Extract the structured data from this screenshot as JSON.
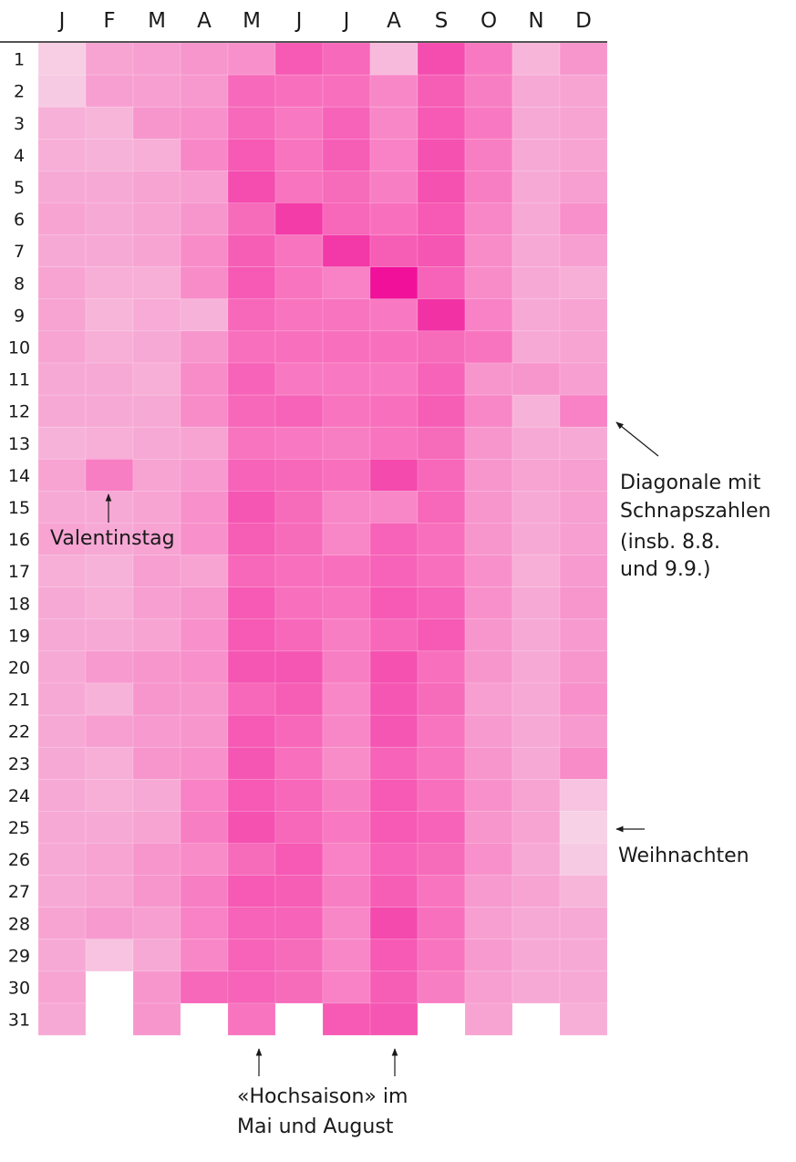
{
  "chart_data": {
    "type": "heatmap",
    "title": "",
    "xlabel": "",
    "ylabel": "",
    "x_categories": [
      "J",
      "F",
      "M",
      "A",
      "M",
      "J",
      "J",
      "A",
      "S",
      "O",
      "N",
      "D"
    ],
    "y_categories": [
      "1",
      "2",
      "3",
      "4",
      "5",
      "6",
      "7",
      "8",
      "9",
      "10",
      "11",
      "12",
      "13",
      "14",
      "15",
      "16",
      "17",
      "18",
      "19",
      "20",
      "21",
      "22",
      "23",
      "24",
      "25",
      "26",
      "27",
      "28",
      "29",
      "30",
      "31"
    ],
    "value_scale": "relative intensity 0-100 (estimated, no legend shown)",
    "colorscale": [
      "#f7dcea",
      "#f7b0d8",
      "#f874bf",
      "#f33ea9",
      "#f0109a"
    ],
    "values": [
      [
        8,
        30,
        32,
        36,
        38,
        62,
        55,
        20,
        68,
        48,
        22,
        36
      ],
      [
        10,
        32,
        32,
        35,
        55,
        52,
        52,
        42,
        60,
        46,
        28,
        30
      ],
      [
        25,
        22,
        36,
        38,
        55,
        48,
        58,
        42,
        62,
        48,
        28,
        30
      ],
      [
        26,
        24,
        26,
        42,
        62,
        50,
        60,
        44,
        66,
        46,
        28,
        30
      ],
      [
        28,
        28,
        30,
        32,
        68,
        50,
        54,
        46,
        66,
        46,
        28,
        32
      ],
      [
        30,
        28,
        30,
        36,
        54,
        76,
        56,
        52,
        62,
        42,
        28,
        38
      ],
      [
        28,
        28,
        30,
        40,
        60,
        50,
        78,
        60,
        64,
        40,
        28,
        32
      ],
      [
        30,
        26,
        26,
        40,
        62,
        50,
        44,
        100,
        58,
        40,
        28,
        26
      ],
      [
        30,
        22,
        27,
        24,
        56,
        50,
        50,
        48,
        82,
        44,
        28,
        30
      ],
      [
        30,
        26,
        28,
        36,
        52,
        52,
        52,
        52,
        54,
        50,
        28,
        30
      ],
      [
        28,
        28,
        26,
        40,
        58,
        48,
        48,
        48,
        58,
        36,
        36,
        32
      ],
      [
        28,
        28,
        28,
        40,
        56,
        58,
        50,
        52,
        60,
        42,
        24,
        44
      ],
      [
        24,
        26,
        28,
        30,
        50,
        48,
        46,
        50,
        54,
        36,
        28,
        28
      ],
      [
        30,
        46,
        30,
        34,
        58,
        56,
        52,
        70,
        56,
        36,
        30,
        32
      ],
      [
        28,
        28,
        30,
        38,
        64,
        54,
        42,
        42,
        56,
        36,
        28,
        32
      ],
      [
        30,
        28,
        30,
        38,
        60,
        54,
        42,
        58,
        52,
        36,
        28,
        32
      ],
      [
        26,
        24,
        32,
        30,
        56,
        52,
        52,
        58,
        52,
        38,
        26,
        34
      ],
      [
        28,
        26,
        32,
        36,
        62,
        52,
        50,
        62,
        58,
        38,
        28,
        36
      ],
      [
        28,
        28,
        30,
        38,
        62,
        56,
        46,
        56,
        62,
        36,
        28,
        34
      ],
      [
        28,
        34,
        36,
        38,
        64,
        64,
        46,
        66,
        52,
        36,
        28,
        36
      ],
      [
        28,
        24,
        36,
        36,
        56,
        60,
        42,
        64,
        54,
        32,
        28,
        38
      ],
      [
        28,
        32,
        34,
        36,
        62,
        56,
        42,
        64,
        50,
        34,
        28,
        34
      ],
      [
        28,
        26,
        36,
        38,
        64,
        52,
        40,
        58,
        50,
        36,
        28,
        40
      ],
      [
        28,
        26,
        28,
        44,
        62,
        56,
        46,
        62,
        52,
        38,
        30,
        14
      ],
      [
        28,
        28,
        30,
        46,
        66,
        56,
        48,
        62,
        58,
        36,
        30,
        6
      ],
      [
        28,
        30,
        36,
        40,
        54,
        62,
        44,
        58,
        54,
        38,
        28,
        10
      ],
      [
        28,
        30,
        36,
        46,
        62,
        60,
        46,
        60,
        50,
        34,
        30,
        22
      ],
      [
        30,
        34,
        32,
        44,
        58,
        58,
        42,
        70,
        52,
        32,
        28,
        28
      ],
      [
        28,
        14,
        28,
        42,
        58,
        54,
        42,
        62,
        50,
        34,
        28,
        28
      ],
      [
        30,
        null,
        36,
        56,
        58,
        54,
        44,
        60,
        46,
        32,
        28,
        28
      ],
      [
        28,
        null,
        36,
        null,
        50,
        null,
        62,
        64,
        null,
        30,
        null,
        26
      ]
    ],
    "annotations": {
      "valentine": "Valentinstag",
      "diagonal": [
        "Diagonale mit",
        "Schnapszahlen",
        "(insb. 8.8.",
        "und 9.9.)"
      ],
      "christmas": "Weihnachten",
      "season": [
        "«Hochsaison» im",
        "Mai und August"
      ]
    }
  }
}
